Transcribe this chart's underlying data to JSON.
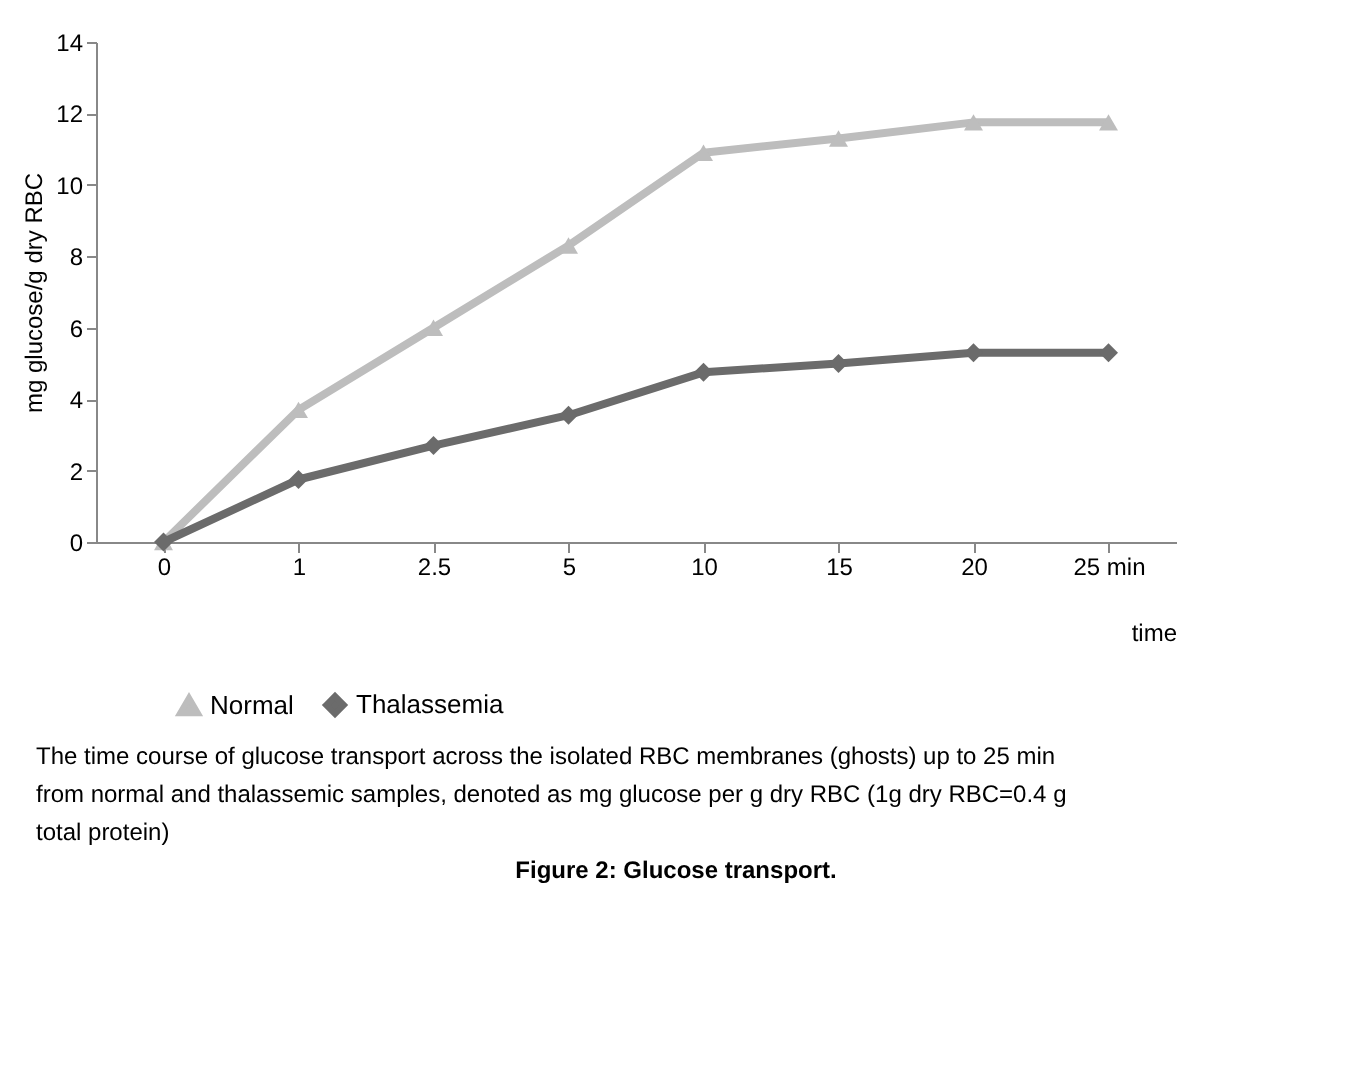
{
  "chart_data": {
    "type": "line",
    "xlabel": "time",
    "ylabel": "mg glucose/g dry RBC",
    "categories": [
      "0",
      "1",
      "2.5",
      "5",
      "10",
      "15",
      "20",
      "25 min"
    ],
    "series": [
      {
        "name": "Normal",
        "color": "#bdbdbd",
        "marker": "triangle",
        "values": [
          0,
          3.7,
          6.0,
          8.3,
          10.9,
          11.3,
          11.75,
          11.75
        ]
      },
      {
        "name": "Thalassemia",
        "color": "#6b6b6b",
        "marker": "diamond",
        "values": [
          0,
          1.75,
          2.7,
          3.55,
          4.75,
          5.0,
          5.3,
          5.3
        ]
      }
    ],
    "ylim": [
      0,
      14
    ],
    "yticks": [
      0,
      2,
      4,
      6,
      8,
      10,
      12,
      14
    ],
    "grid": false,
    "legend": "bottom",
    "line_style": "solid",
    "annotations": [
      "The time course of glucose transport across the isolated RBC membranes (ghosts) up to 25 min from normal and thalassemic samples, denoted as mg glucose per g dry RBC (1g dry RBC=0.4 g total protein)",
      "Figure 2: Glucose transport."
    ]
  }
}
